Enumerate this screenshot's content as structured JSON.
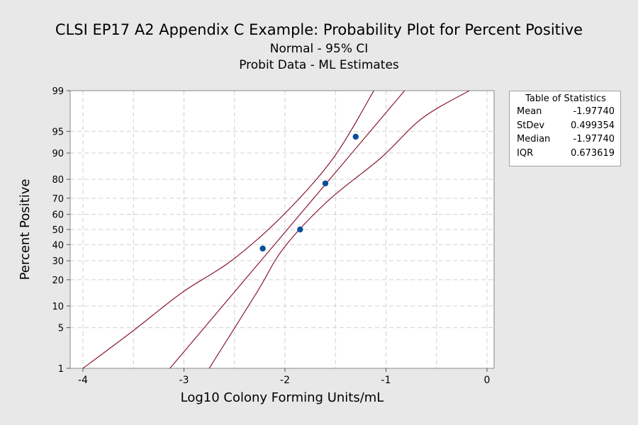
{
  "chart_data": {
    "type": "scatter",
    "title": "CLSI EP17 A2 Appendix C Example: Probability Plot for Percent Positive",
    "subtitle": [
      "Normal - 95% CI",
      "Probit Data - ML Estimates"
    ],
    "xlabel": "Log10 Colony Forming Units/mL",
    "ylabel": "Percent Positive",
    "xlim": [
      -4.2,
      0.08
    ],
    "ylim": [
      1,
      99
    ],
    "y_scale": "normal-probability",
    "x_ticks": [
      -4,
      -3,
      -2,
      -1,
      0
    ],
    "x_grid": [
      -4,
      -3.5,
      -3,
      -2.5,
      -2,
      -1.5,
      -1,
      -0.5,
      0
    ],
    "y_ticks": [
      1,
      5,
      10,
      20,
      30,
      40,
      50,
      60,
      70,
      80,
      90,
      95,
      99
    ],
    "grid": true,
    "points": [
      {
        "x": -2.22,
        "y": 37.5
      },
      {
        "x": -1.85,
        "y": 50
      },
      {
        "x": -1.6,
        "y": 78
      },
      {
        "x": -1.3,
        "y": 94
      }
    ],
    "fit": {
      "mean": -1.9774,
      "stdev": 0.499354
    },
    "ci_lower_x": [
      {
        "x": -4.0,
        "y": 1
      },
      {
        "x": -3.51,
        "y": 4.4
      },
      {
        "x": -3.02,
        "y": 14.5
      },
      {
        "x": -2.52,
        "y": 30.5
      },
      {
        "x": -2.01,
        "y": 60
      },
      {
        "x": -1.52,
        "y": 88.5
      },
      {
        "x": -1.12,
        "y": 99
      }
    ],
    "ci_upper_x": [
      {
        "x": -2.75,
        "y": 1
      },
      {
        "x": -2.28,
        "y": 14.5
      },
      {
        "x": -2.01,
        "y": 38
      },
      {
        "x": -1.57,
        "y": 68.7
      },
      {
        "x": -1.05,
        "y": 88.5
      },
      {
        "x": -0.64,
        "y": 96.9
      },
      {
        "x": -0.175,
        "y": 99
      }
    ],
    "colors": {
      "points": "#0b4f9c",
      "lines": "#8b1a2e",
      "grid": "#d0d0d0",
      "background": "#e8e8e8"
    },
    "legend": {
      "title": "Table of Statistics",
      "placement": "right",
      "rows": [
        {
          "label": "Mean",
          "value": "-1.97740"
        },
        {
          "label": "StDev",
          "value": "0.499354"
        },
        {
          "label": "Median",
          "value": "-1.97740"
        },
        {
          "label": "IQR",
          "value": "0.673619"
        }
      ]
    }
  }
}
